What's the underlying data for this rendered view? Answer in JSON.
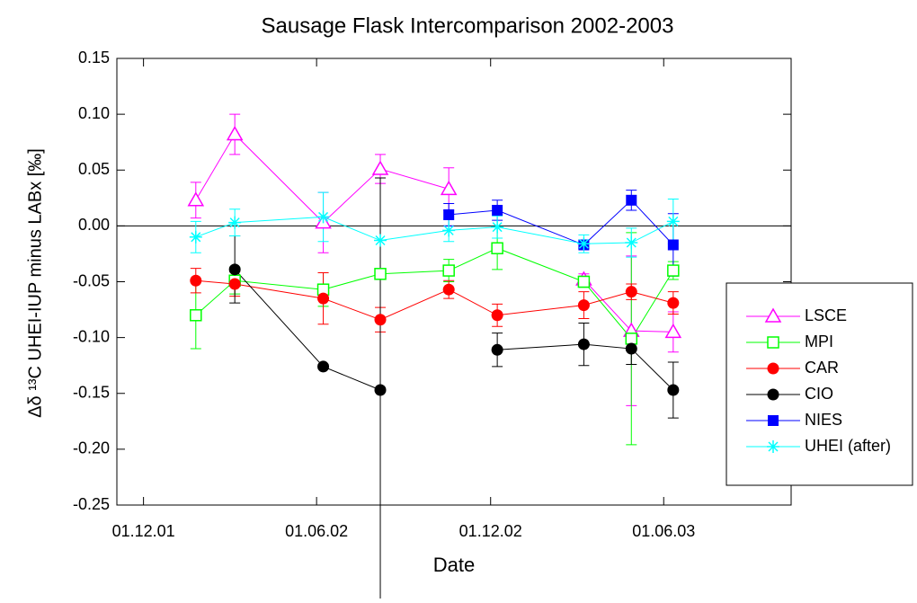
{
  "chart_data": {
    "type": "line",
    "title": "Sausage Flask Intercomparison 2002-2003",
    "xlabel": "Date",
    "ylabel": "Δδ ¹³C UHEI-IUP minus LABx [‰]",
    "x": [
      "2002-01-25",
      "2002-03-07",
      "2002-06-08",
      "2002-08-07",
      "2002-10-18",
      "2002-12-08",
      "2003-03-09",
      "2003-04-28",
      "2003-06-11"
    ],
    "xlim": [
      "2001-11-03",
      "2003-10-13"
    ],
    "xticks": [
      {
        "value": "2001-12-01",
        "label": "01.12.01"
      },
      {
        "value": "2002-06-01",
        "label": "01.06.02"
      },
      {
        "value": "2002-12-01",
        "label": "01.12.02"
      },
      {
        "value": "2003-06-01",
        "label": "01.06.03"
      }
    ],
    "ylim": [
      -0.25,
      0.15
    ],
    "yticks": [
      -0.25,
      {
        "value": -0.2,
        "label": "-0.20"
      },
      -0.15,
      {
        "value": -0.1,
        "label": "-0.10"
      },
      -0.05,
      {
        "value": 0,
        "label": "0.00"
      },
      0.05,
      {
        "value": 0.1,
        "label": "0.10"
      },
      0.15
    ],
    "hline": 0,
    "legend": "right",
    "series": [
      {
        "name": "LSCE",
        "color": "#ff00ff",
        "marker": "triangle-open",
        "values": [
          0.023,
          0.082,
          0.003,
          0.051,
          0.033,
          null,
          -0.048,
          -0.094,
          -0.095
        ],
        "errors": [
          0.016,
          0.018,
          0.027,
          0.013,
          0.019,
          null,
          0.005,
          0.067,
          0.018
        ]
      },
      {
        "name": "MPI",
        "color": "#00ff00",
        "marker": "square-open",
        "values": [
          -0.08,
          -0.049,
          -0.057,
          -0.043,
          -0.04,
          -0.02,
          -0.05,
          -0.101,
          -0.04
        ],
        "errors": [
          0.03,
          0.012,
          0.015,
          0.004,
          0.01,
          0.019,
          0.005,
          0.095,
          0.008
        ]
      },
      {
        "name": "CAR",
        "color": "#ff0000",
        "marker": "circle",
        "values": [
          -0.049,
          -0.052,
          -0.065,
          -0.084,
          -0.057,
          -0.08,
          -0.071,
          -0.059,
          -0.069
        ],
        "errors": [
          0.011,
          0.011,
          0.023,
          0.011,
          0.008,
          0.01,
          0.012,
          0.007,
          0.01
        ]
      },
      {
        "name": "CIO",
        "color": "#000000",
        "marker": "circle",
        "values": [
          null,
          -0.039,
          -0.126,
          -0.147,
          null,
          -0.111,
          -0.106,
          -0.11,
          -0.147
        ],
        "errors": [
          null,
          0.03,
          0.002,
          0.19,
          null,
          0.015,
          0.019,
          0.014,
          0.025
        ]
      },
      {
        "name": "NIES",
        "color": "#0000ff",
        "marker": "square",
        "values": [
          null,
          null,
          null,
          null,
          0.01,
          0.014,
          -0.017,
          0.023,
          -0.017
        ],
        "errors": [
          null,
          null,
          null,
          null,
          0.01,
          0.009,
          0.003,
          0.009,
          0.028
        ]
      },
      {
        "name": "UHEI (after)",
        "color": "#00ffff",
        "marker": "asterisk",
        "values": [
          -0.01,
          0.003,
          0.008,
          -0.013,
          -0.004,
          -0.001,
          -0.016,
          -0.015,
          0.004
        ],
        "errors": [
          0.014,
          0.012,
          0.022,
          null,
          0.01,
          0.01,
          0.008,
          0.013,
          0.02
        ]
      }
    ]
  }
}
